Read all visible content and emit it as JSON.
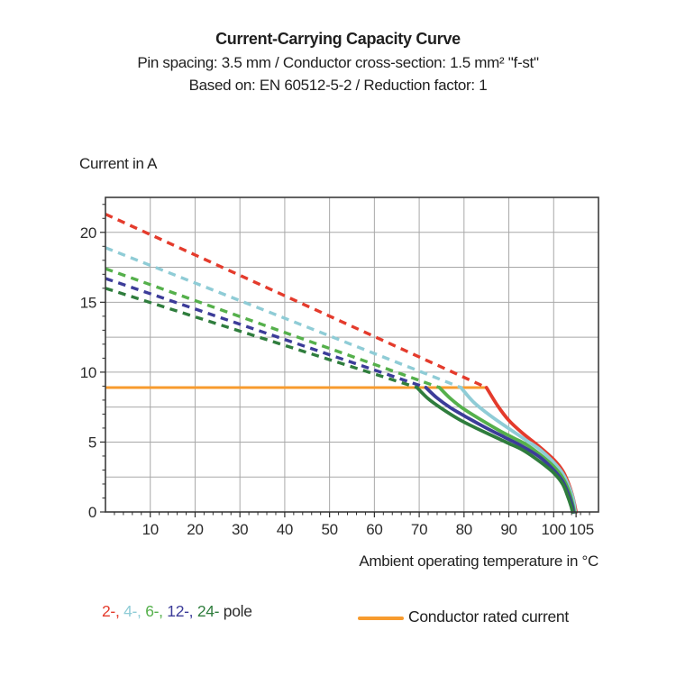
{
  "header": {
    "title": "Current-Carrying Capacity Curve",
    "subtitle1": "Pin spacing: 3.5 mm / Conductor cross-section: 1.5 mm² \"f-st\"",
    "subtitle2": "Based on: EN 60512-5-2 / Reduction factor: 1"
  },
  "axes": {
    "y_title": "Current in A",
    "x_title": "Ambient operating temperature in °C"
  },
  "legend": {
    "pole_items": [
      {
        "label": "2-,",
        "color": "#e43b2c"
      },
      {
        "label": "4-,",
        "color": "#8fccd6"
      },
      {
        "label": "6-,",
        "color": "#55b04b"
      },
      {
        "label": "12-,",
        "color": "#3c3c99"
      },
      {
        "label": "24-",
        "color": "#2f7d3d"
      }
    ],
    "item_gap": " ",
    "pole_suffix": " pole",
    "rated": {
      "label": "Conductor rated current",
      "color": "#f79b2e"
    }
  },
  "chart_data": {
    "type": "line",
    "title": "Current-Carrying Capacity Curve",
    "xlabel": "Ambient operating temperature in °C",
    "ylabel": "Current in A",
    "xlim": [
      0,
      110
    ],
    "ylim": [
      0,
      22.5
    ],
    "x_major_ticks": [
      10,
      20,
      30,
      40,
      50,
      60,
      70,
      80,
      90,
      100,
      105
    ],
    "x_minor_tick_step": 2,
    "y_major_ticks": [
      0,
      5,
      10,
      15,
      20
    ],
    "y_minor_tick_step": 1,
    "grid": {
      "x_step": 10,
      "y_step": 2.5,
      "on": true,
      "color": "#a8a8a8"
    },
    "frame_color": "#3c3c3c",
    "tick_label_color": "#2b2b2b",
    "rated_current": {
      "label": "Conductor rated current",
      "value": 8.9,
      "x_range": [
        0,
        85
      ],
      "color": "#f79b2e"
    },
    "series": [
      {
        "name": "2-pole",
        "color": "#e43b2c",
        "dashed": {
          "from": [
            0,
            21.3
          ],
          "to": [
            85,
            8.9
          ]
        },
        "solid": [
          [
            85,
            8.9
          ],
          [
            87.5,
            7.6
          ],
          [
            90,
            6.55
          ],
          [
            93,
            5.65
          ],
          [
            96.5,
            4.75
          ],
          [
            100,
            3.75
          ],
          [
            102,
            2.95
          ],
          [
            103.3,
            2.05
          ],
          [
            104.3,
            1.05
          ],
          [
            105,
            0
          ]
        ]
      },
      {
        "name": "4-pole",
        "color": "#8fccd6",
        "dashed": {
          "from": [
            0,
            18.9
          ],
          "to": [
            79.3,
            8.9
          ]
        },
        "solid": [
          [
            79.3,
            8.9
          ],
          [
            82,
            7.9
          ],
          [
            85,
            7.1
          ],
          [
            88,
            6.4
          ],
          [
            91,
            5.75
          ],
          [
            94,
            5.1
          ],
          [
            97,
            4.45
          ],
          [
            100,
            3.55
          ],
          [
            102,
            2.75
          ],
          [
            103.5,
            1.75
          ],
          [
            104.4,
            0.85
          ],
          [
            104.8,
            0
          ]
        ]
      },
      {
        "name": "6-pole",
        "color": "#55b04b",
        "dashed": {
          "from": [
            0,
            17.4
          ],
          "to": [
            74.5,
            8.9
          ]
        },
        "solid": [
          [
            74.5,
            8.9
          ],
          [
            77,
            8.1
          ],
          [
            80,
            7.35
          ],
          [
            84,
            6.55
          ],
          [
            88,
            5.8
          ],
          [
            91,
            5.3
          ],
          [
            94,
            4.8
          ],
          [
            97,
            4.1
          ],
          [
            100,
            3.25
          ],
          [
            102,
            2.45
          ],
          [
            103.4,
            1.5
          ],
          [
            104.2,
            0.6
          ],
          [
            104.6,
            0
          ]
        ]
      },
      {
        "name": "12-pole",
        "color": "#3c3c99",
        "dashed": {
          "from": [
            0,
            16.7
          ],
          "to": [
            71.5,
            8.9
          ]
        },
        "solid": [
          [
            71.5,
            8.9
          ],
          [
            74,
            8.15
          ],
          [
            77,
            7.45
          ],
          [
            81,
            6.7
          ],
          [
            85,
            6.0
          ],
          [
            89,
            5.35
          ],
          [
            93,
            4.7
          ],
          [
            97,
            3.9
          ],
          [
            100,
            3.0
          ],
          [
            102,
            2.2
          ],
          [
            103.2,
            1.35
          ],
          [
            104.1,
            0.5
          ],
          [
            104.4,
            0
          ]
        ]
      },
      {
        "name": "24-pole",
        "color": "#2f7d3d",
        "dashed": {
          "from": [
            0,
            16.0
          ],
          "to": [
            69.5,
            8.9
          ]
        },
        "solid": [
          [
            69.5,
            8.9
          ],
          [
            72,
            8.1
          ],
          [
            75,
            7.4
          ],
          [
            79,
            6.6
          ],
          [
            83,
            5.95
          ],
          [
            87,
            5.35
          ],
          [
            90,
            4.9
          ],
          [
            93,
            4.45
          ],
          [
            96.5,
            3.7
          ],
          [
            100,
            2.8
          ],
          [
            102,
            2.0
          ],
          [
            103.1,
            1.15
          ],
          [
            103.9,
            0.4
          ],
          [
            104.2,
            0
          ]
        ]
      }
    ]
  }
}
